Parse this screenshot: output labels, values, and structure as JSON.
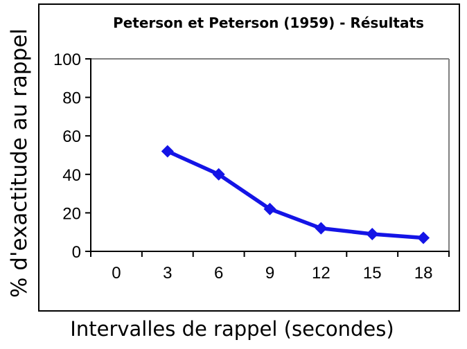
{
  "chart_data": {
    "type": "line",
    "title": "Peterson et Peterson (1959) - Résultats",
    "xlabel": "Intervalles de rappel (secondes)",
    "ylabel": "% d'exactitude au rappel",
    "x_categories": [
      "0",
      "3",
      "6",
      "9",
      "12",
      "15",
      "18"
    ],
    "yticks": [
      0,
      20,
      40,
      60,
      80,
      100
    ],
    "ylim": [
      0,
      100
    ],
    "grid": false,
    "legend": "none",
    "axis_color": "#000000",
    "plot_border_color": "#808080",
    "series": [
      {
        "name": "% d'exactitude au rappel",
        "color": "#1414e6",
        "marker": "diamond",
        "x": [
          3,
          6,
          9,
          12,
          15,
          18
        ],
        "values": [
          52,
          40,
          22,
          12,
          9,
          7
        ]
      }
    ]
  }
}
